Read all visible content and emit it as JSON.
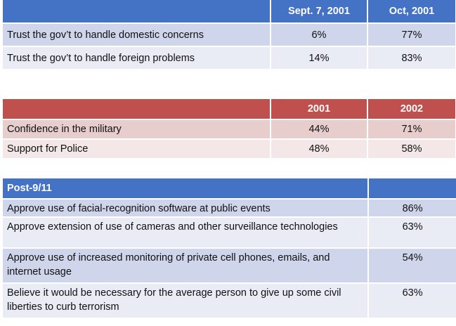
{
  "table1": {
    "headers": [
      "",
      "Sept. 7, 2001",
      "Oct, 2001"
    ],
    "rows": [
      [
        "Trust the gov’t to handle domestic concerns",
        "6%",
        "77%"
      ],
      [
        "Trust the gov’t to handle foreign problems",
        "14%",
        "83%"
      ]
    ]
  },
  "table2": {
    "headers": [
      "",
      "2001",
      "2002"
    ],
    "rows": [
      [
        "Confidence in the military",
        "44%",
        "71%"
      ],
      [
        "Support for Police",
        "48%",
        "58%"
      ]
    ]
  },
  "table3": {
    "headers": [
      "Post-9/11",
      ""
    ],
    "rows": [
      [
        "Approve use of facial-recognition software at public events",
        "86%"
      ],
      [
        "Approve extension of use of cameras and other surveillance technologies",
        "63%"
      ],
      [
        "Approve use of increased monitoring of private cell phones, emails, and internet usage",
        "54%"
      ],
      [
        "Believe it would be necessary for the average person to give up some civil liberties to curb terrorism",
        "63%"
      ]
    ]
  },
  "colors": {
    "blue_header": "#4472c4",
    "blue_row_dark": "#cfd5ea",
    "blue_row_light": "#e9ebf5",
    "red_header": "#c0504d",
    "red_row_dark": "#e8cdcd",
    "red_row_light": "#f3e7e7"
  }
}
